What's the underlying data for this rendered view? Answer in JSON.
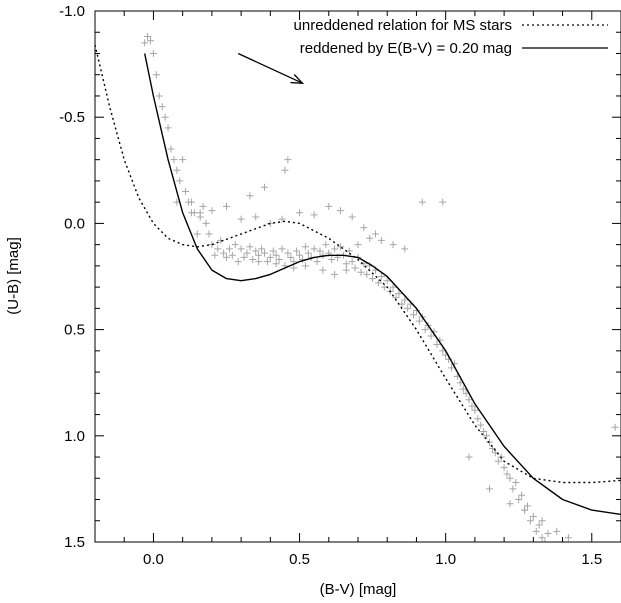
{
  "chart_data": {
    "type": "scatter",
    "xlabel": "(B-V) [mag]",
    "ylabel": "(U-B) [mag]",
    "xlim": [
      -0.2,
      1.6
    ],
    "ylim": [
      1.5,
      -1.0
    ],
    "y_inverted": true,
    "grid": false,
    "legend_placement": "top-right",
    "x_ticks": [
      0.0,
      0.5,
      1.0,
      1.5
    ],
    "x_tick_labels": [
      "0.0",
      "0.5",
      "1.0",
      "1.5"
    ],
    "y_ticks": [
      -1.0,
      -0.5,
      0.0,
      0.5,
      1.0,
      1.5
    ],
    "y_tick_labels": [
      "-1.0",
      "-0.5",
      "0.0",
      "0.5",
      "1.0",
      "1.5"
    ],
    "series": [
      {
        "name": "unreddened relation for MS stars",
        "kind": "line",
        "style": "dotted",
        "color": "#000000",
        "x": [
          -0.2,
          -0.15,
          -0.1,
          -0.05,
          0.0,
          0.05,
          0.1,
          0.15,
          0.2,
          0.3,
          0.4,
          0.45,
          0.5,
          0.6,
          0.7,
          0.8,
          0.9,
          1.0,
          1.1,
          1.2,
          1.3,
          1.4,
          1.5,
          1.6
        ],
        "y": [
          -0.84,
          -0.55,
          -0.3,
          -0.12,
          0.0,
          0.07,
          0.1,
          0.11,
          0.1,
          0.05,
          0.0,
          -0.01,
          0.0,
          0.07,
          0.17,
          0.3,
          0.5,
          0.73,
          0.95,
          1.12,
          1.2,
          1.22,
          1.22,
          1.21
        ]
      },
      {
        "name": "reddened by E(B-V) = 0.20 mag",
        "kind": "line",
        "style": "solid",
        "color": "#000000",
        "x": [
          -0.03,
          0.0,
          0.05,
          0.1,
          0.15,
          0.2,
          0.25,
          0.3,
          0.35,
          0.4,
          0.45,
          0.5,
          0.55,
          0.6,
          0.65,
          0.7,
          0.75,
          0.8,
          0.9,
          1.0,
          1.1,
          1.2,
          1.3,
          1.4,
          1.5,
          1.6
        ],
        "y": [
          -0.8,
          -0.6,
          -0.3,
          -0.05,
          0.12,
          0.22,
          0.26,
          0.27,
          0.26,
          0.24,
          0.21,
          0.18,
          0.16,
          0.15,
          0.15,
          0.16,
          0.2,
          0.25,
          0.4,
          0.6,
          0.85,
          1.05,
          1.2,
          1.3,
          1.35,
          1.37
        ]
      },
      {
        "name": "stars",
        "kind": "points",
        "marker": "+",
        "color": "#a6a6a6",
        "x": [
          -0.03,
          -0.02,
          -0.01,
          0.0,
          0.01,
          0.02,
          0.04,
          0.05,
          0.06,
          0.03,
          0.07,
          0.08,
          0.09,
          0.1,
          0.11,
          0.12,
          0.13,
          0.14,
          0.15,
          0.08,
          0.16,
          0.17,
          0.18,
          0.19,
          0.2,
          0.21,
          0.22,
          0.23,
          0.24,
          0.25,
          0.26,
          0.27,
          0.28,
          0.29,
          0.3,
          0.31,
          0.32,
          0.33,
          0.34,
          0.35,
          0.36,
          0.37,
          0.38,
          0.39,
          0.4,
          0.41,
          0.42,
          0.43,
          0.44,
          0.45,
          0.46,
          0.47,
          0.48,
          0.49,
          0.5,
          0.51,
          0.52,
          0.53,
          0.54,
          0.55,
          0.56,
          0.57,
          0.58,
          0.59,
          0.6,
          0.61,
          0.62,
          0.63,
          0.64,
          0.65,
          0.66,
          0.67,
          0.68,
          0.69,
          0.7,
          0.71,
          0.72,
          0.73,
          0.74,
          0.75,
          0.76,
          0.77,
          0.78,
          0.79,
          0.8,
          0.81,
          0.82,
          0.83,
          0.84,
          0.85,
          0.86,
          0.87,
          0.88,
          0.89,
          0.9,
          0.91,
          0.92,
          0.93,
          0.94,
          0.95,
          0.96,
          0.97,
          0.98,
          0.99,
          1.0,
          1.01,
          1.02,
          1.03,
          1.04,
          1.05,
          1.06,
          1.07,
          1.08,
          1.09,
          1.1,
          1.11,
          1.12,
          1.13,
          1.14,
          1.15,
          1.16,
          1.17,
          1.18,
          1.19,
          1.2,
          1.21,
          1.22,
          1.23,
          1.24,
          1.25,
          1.26,
          1.27,
          1.28,
          1.29,
          1.3,
          1.31,
          1.32,
          1.33,
          1.34,
          1.35,
          0.46,
          0.45,
          0.38,
          0.92,
          0.99,
          0.33,
          0.13,
          0.16,
          0.2,
          0.25,
          0.3,
          0.35,
          0.4,
          0.44,
          0.5,
          0.55,
          0.6,
          0.64,
          0.68,
          0.72,
          0.76,
          0.58,
          0.62,
          0.66,
          0.7,
          0.74,
          0.78,
          0.82,
          0.86,
          0.52,
          0.48,
          0.42,
          0.36,
          1.08,
          1.15,
          1.22,
          1.27,
          1.33,
          1.58,
          1.38,
          1.42
        ],
        "y": [
          -0.85,
          -0.88,
          -0.86,
          -0.8,
          -0.7,
          -0.6,
          -0.5,
          -0.45,
          -0.35,
          -0.55,
          -0.3,
          -0.25,
          -0.2,
          -0.3,
          -0.15,
          -0.1,
          -0.1,
          -0.05,
          0.05,
          -0.1,
          -0.05,
          -0.08,
          0.0,
          0.05,
          0.1,
          0.15,
          0.12,
          0.08,
          0.14,
          0.16,
          0.12,
          0.15,
          0.1,
          0.18,
          0.12,
          0.16,
          0.14,
          0.11,
          0.17,
          0.13,
          0.15,
          0.12,
          0.14,
          0.18,
          0.16,
          0.13,
          0.15,
          0.17,
          0.12,
          0.2,
          0.14,
          0.16,
          0.18,
          0.13,
          0.15,
          0.17,
          0.11,
          0.14,
          0.16,
          0.12,
          0.18,
          0.13,
          0.15,
          0.1,
          0.14,
          0.17,
          0.12,
          0.16,
          0.11,
          0.15,
          0.19,
          0.13,
          0.18,
          0.21,
          0.16,
          0.23,
          0.19,
          0.24,
          0.2,
          0.26,
          0.22,
          0.28,
          0.25,
          0.3,
          0.27,
          0.32,
          0.3,
          0.35,
          0.33,
          0.38,
          0.36,
          0.4,
          0.38,
          0.43,
          0.41,
          0.46,
          0.44,
          0.5,
          0.48,
          0.53,
          0.51,
          0.57,
          0.55,
          0.6,
          0.62,
          0.64,
          0.68,
          0.66,
          0.72,
          0.75,
          0.78,
          0.8,
          0.83,
          0.86,
          0.88,
          0.92,
          0.95,
          0.98,
          1.0,
          1.03,
          1.06,
          1.08,
          1.12,
          1.1,
          1.15,
          1.18,
          1.2,
          1.25,
          1.22,
          1.3,
          1.28,
          1.35,
          1.33,
          1.4,
          1.38,
          1.45,
          1.42,
          1.48,
          1.5,
          1.46,
          -0.3,
          -0.25,
          -0.17,
          -0.1,
          -0.1,
          -0.13,
          -0.05,
          -0.03,
          -0.06,
          -0.08,
          -0.02,
          -0.03,
          0.0,
          -0.02,
          -0.05,
          -0.04,
          -0.08,
          -0.06,
          -0.03,
          0.02,
          0.05,
          0.22,
          0.24,
          0.22,
          0.1,
          0.07,
          0.08,
          0.1,
          0.12,
          0.2,
          0.21,
          0.19,
          0.18,
          1.1,
          1.25,
          1.32,
          1.35,
          1.4,
          0.96,
          1.45,
          1.48
        ]
      }
    ],
    "annotations": [
      {
        "type": "arrow",
        "x0": 0.29,
        "y0": -0.8,
        "x1": 0.51,
        "y1": -0.66
      }
    ],
    "legend": {
      "entries": [
        {
          "label": "unreddened relation for MS stars",
          "style": "dotted"
        },
        {
          "label": "reddened by E(B-V) = 0.20 mag",
          "style": "solid"
        }
      ]
    }
  }
}
